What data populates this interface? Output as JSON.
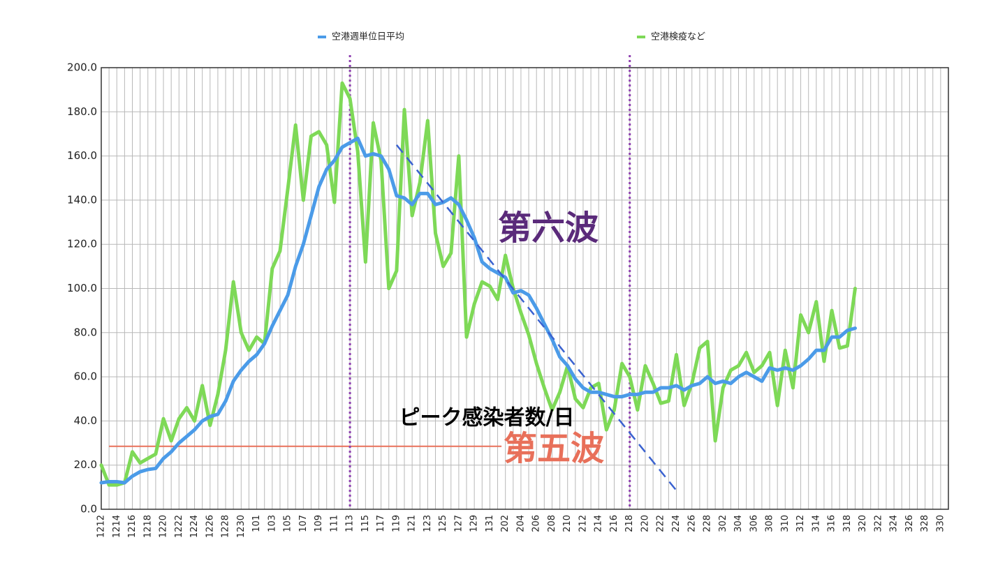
{
  "chart_data": {
    "type": "line",
    "categories": [
      "1212",
      null,
      "1214",
      null,
      "1216",
      null,
      "1218",
      null,
      "1220",
      null,
      "1222",
      null,
      "1224",
      null,
      "1226",
      null,
      "1228",
      null,
      "1230",
      null,
      "101",
      null,
      "103",
      null,
      "105",
      null,
      "107",
      null,
      "109",
      null,
      "111",
      null,
      "113",
      null,
      "115",
      null,
      "117",
      null,
      "119",
      null,
      "121",
      null,
      "123",
      null,
      "125",
      null,
      "127",
      null,
      "129",
      null,
      "131",
      null,
      "202",
      null,
      "204",
      null,
      "206",
      null,
      "208",
      null,
      "210",
      null,
      "212",
      null,
      "214",
      null,
      "216",
      null,
      "218",
      null,
      "220",
      null,
      "222",
      null,
      "224",
      null,
      "226",
      null,
      "228",
      null,
      "302",
      null,
      "304",
      null,
      "306",
      null,
      "308",
      null,
      "310",
      null,
      "312",
      null,
      "314",
      null,
      "316",
      null,
      "318",
      null,
      "320",
      null,
      "322",
      null,
      "324",
      null,
      "326",
      null,
      "328",
      null,
      "330",
      null
    ],
    "series": [
      {
        "name": "空港週単位日平均",
        "color": "#4b9be8",
        "values": [
          12,
          12.5,
          12.5,
          12,
          15,
          17,
          18,
          18.5,
          23,
          26,
          30,
          33,
          36,
          40,
          42,
          43,
          49,
          58,
          63,
          67,
          70,
          75,
          83,
          90,
          97,
          110,
          120,
          133,
          146,
          154,
          158,
          164,
          166,
          168,
          160,
          161,
          160,
          154,
          142,
          141,
          138,
          143,
          143,
          138,
          139,
          141,
          138,
          131,
          123,
          112,
          109,
          107,
          105,
          98,
          99,
          97,
          91,
          84,
          77,
          69,
          65,
          59,
          55,
          53,
          53,
          52,
          51,
          51,
          52,
          52,
          53,
          53,
          55,
          55,
          56,
          54,
          56,
          57,
          60,
          57,
          58,
          57,
          60,
          62,
          60,
          58,
          64,
          63,
          64,
          63,
          65,
          68,
          72,
          72,
          78,
          78,
          81,
          82,
          null,
          null,
          null,
          null,
          null,
          null,
          null,
          null,
          null,
          null,
          null,
          null
        ]
      },
      {
        "name": "空港検疫など",
        "color": "#7ed957",
        "values": [
          20,
          11,
          11,
          12,
          26,
          21,
          23,
          25,
          41,
          31,
          41,
          46,
          40,
          56,
          38,
          52,
          72,
          103,
          80,
          72,
          78,
          75,
          109,
          117,
          145,
          174,
          140,
          169,
          171,
          165,
          139,
          193,
          186,
          162,
          112,
          175,
          158,
          100,
          108,
          181,
          133,
          148,
          176,
          125,
          110,
          116,
          160,
          78,
          93,
          103,
          101,
          95,
          115,
          100,
          89,
          79,
          66,
          55,
          45,
          53,
          65,
          50,
          46,
          55,
          57,
          36,
          45,
          66,
          60,
          45,
          65,
          57,
          48,
          49,
          70,
          47,
          57,
          73,
          76,
          31,
          55,
          63,
          65,
          71,
          62,
          65,
          71,
          47,
          72,
          55,
          88,
          80,
          94,
          67,
          90,
          73,
          74,
          100,
          null,
          null,
          null,
          null,
          null,
          null,
          null,
          null,
          null,
          null,
          null,
          null
        ]
      }
    ],
    "ylim": [
      0,
      200
    ],
    "yticks": [
      {
        "value": 0,
        "label": "0.0"
      },
      {
        "value": 20,
        "label": "20.0"
      },
      {
        "value": 40,
        "label": "40.0"
      },
      {
        "value": 60,
        "label": "60.0"
      },
      {
        "value": 80,
        "label": "80.0"
      },
      {
        "value": 100,
        "label": "100.0"
      },
      {
        "value": 120,
        "label": "120.0"
      },
      {
        "value": 140,
        "label": "140.0"
      },
      {
        "value": 160,
        "label": "160.0"
      },
      {
        "value": 180,
        "label": "180.0"
      },
      {
        "value": 200,
        "label": "200.0"
      }
    ],
    "grid": true,
    "legend": "top",
    "vlines": [
      32,
      68
    ],
    "hline": {
      "value": 28.5,
      "from": 1,
      "to": 51.5,
      "color": "#e8705a"
    },
    "trend": {
      "x": [
        38,
        74
      ],
      "y": [
        165,
        8.5
      ],
      "color": "#3a62d0"
    },
    "annotations": [
      {
        "text": "第六波",
        "color": "#5a2a7a"
      },
      {
        "text": "ピーク感染者数/日",
        "color": "#000000"
      },
      {
        "text": "第五波",
        "color": "#e8705a"
      }
    ]
  }
}
